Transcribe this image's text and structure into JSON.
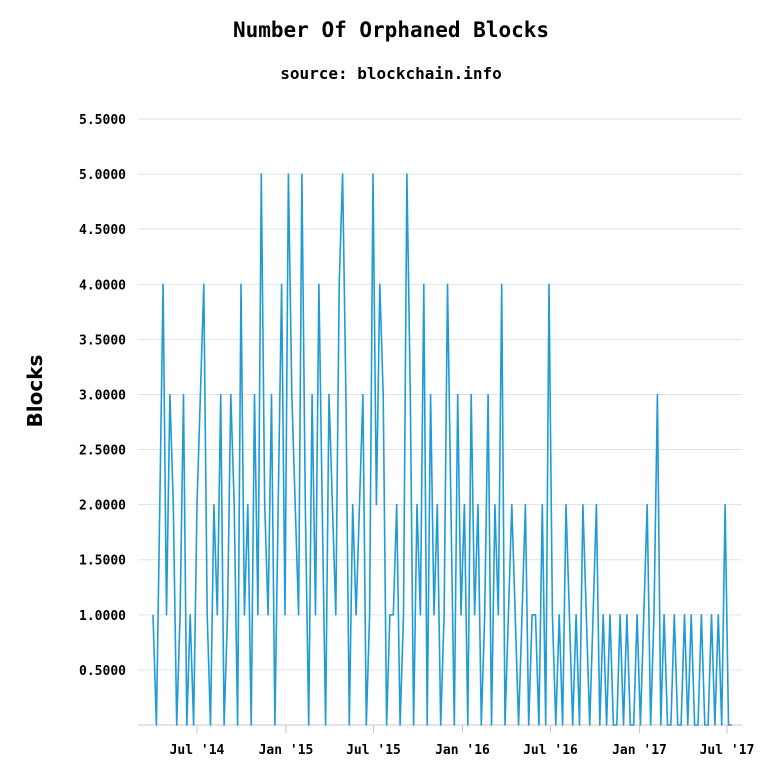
{
  "chart_data": {
    "type": "line",
    "title": "Number Of Orphaned Blocks",
    "subtitle": "source: blockchain.info",
    "ylabel": "Blocks",
    "xlabel": "",
    "ylim": [
      0,
      5.5
    ],
    "yticks": [
      "0.5000",
      "1.0000",
      "1.5000",
      "2.0000",
      "2.5000",
      "3.0000",
      "3.5000",
      "4.0000",
      "4.5000",
      "5.0000",
      "5.5000"
    ],
    "xlim": [
      "2014-03-01",
      "2017-08-01"
    ],
    "xticks": [
      {
        "label": "Jul '14",
        "date": "2014-07-01"
      },
      {
        "label": "Jan '15",
        "date": "2015-01-01"
      },
      {
        "label": "Jul '15",
        "date": "2015-07-01"
      },
      {
        "label": "Jan '16",
        "date": "2016-01-01"
      },
      {
        "label": "Jul '16",
        "date": "2016-07-01"
      },
      {
        "label": "Jan '17",
        "date": "2017-01-01"
      },
      {
        "label": "Jul '17",
        "date": "2017-07-01"
      }
    ],
    "grid": true,
    "legend": "none",
    "series_color": "#1f9bd6",
    "series": [
      {
        "x": [
          "2014-04-01",
          "2014-04-08",
          "2014-04-15",
          "2014-04-22",
          "2014-04-29",
          "2014-05-06",
          "2014-05-13",
          "2014-05-20",
          "2014-05-27",
          "2014-06-03",
          "2014-06-10",
          "2014-06-17",
          "2014-06-24",
          "2014-07-01",
          "2014-07-08",
          "2014-07-15",
          "2014-07-22",
          "2014-07-29",
          "2014-08-05",
          "2014-08-12",
          "2014-08-19",
          "2014-08-26",
          "2014-09-02",
          "2014-09-09",
          "2014-09-16",
          "2014-09-23",
          "2014-09-30",
          "2014-10-07",
          "2014-10-14",
          "2014-10-21",
          "2014-10-28",
          "2014-11-04",
          "2014-11-11",
          "2014-11-18",
          "2014-11-25",
          "2014-12-02",
          "2014-12-09",
          "2014-12-16",
          "2014-12-23",
          "2014-12-30",
          "2015-01-06",
          "2015-01-13",
          "2015-01-20",
          "2015-01-27",
          "2015-02-03",
          "2015-02-10",
          "2015-02-17",
          "2015-02-24",
          "2015-03-03",
          "2015-03-10",
          "2015-03-17",
          "2015-03-24",
          "2015-03-31",
          "2015-04-07",
          "2015-04-14",
          "2015-04-21",
          "2015-04-28",
          "2015-05-05",
          "2015-05-12",
          "2015-05-19",
          "2015-05-26",
          "2015-06-02",
          "2015-06-09",
          "2015-06-16",
          "2015-06-23",
          "2015-06-30",
          "2015-07-07",
          "2015-07-14",
          "2015-07-21",
          "2015-07-28",
          "2015-08-04",
          "2015-08-11",
          "2015-08-18",
          "2015-08-25",
          "2015-09-01",
          "2015-09-08",
          "2015-09-15",
          "2015-09-22",
          "2015-09-29",
          "2015-10-06",
          "2015-10-13",
          "2015-10-20",
          "2015-10-27",
          "2015-11-03",
          "2015-11-10",
          "2015-11-17",
          "2015-11-24",
          "2015-12-01",
          "2015-12-08",
          "2015-12-15",
          "2015-12-22",
          "2015-12-29",
          "2016-01-05",
          "2016-01-12",
          "2016-01-19",
          "2016-01-26",
          "2016-02-02",
          "2016-02-09",
          "2016-02-16",
          "2016-02-23",
          "2016-03-01",
          "2016-03-08",
          "2016-03-15",
          "2016-03-22",
          "2016-03-29",
          "2016-04-05",
          "2016-04-12",
          "2016-04-19",
          "2016-04-26",
          "2016-05-03",
          "2016-05-10",
          "2016-05-17",
          "2016-05-24",
          "2016-05-31",
          "2016-06-07",
          "2016-06-14",
          "2016-06-21",
          "2016-06-28",
          "2016-07-05",
          "2016-07-12",
          "2016-07-19",
          "2016-07-26",
          "2016-08-02",
          "2016-08-09",
          "2016-08-16",
          "2016-08-23",
          "2016-08-30",
          "2016-09-06",
          "2016-09-13",
          "2016-09-20",
          "2016-09-27",
          "2016-10-04",
          "2016-10-11",
          "2016-10-18",
          "2016-10-25",
          "2016-11-01",
          "2016-11-08",
          "2016-11-15",
          "2016-11-22",
          "2016-11-29",
          "2016-12-06",
          "2016-12-13",
          "2016-12-20",
          "2016-12-27",
          "2017-01-03",
          "2017-01-10",
          "2017-01-17",
          "2017-01-24",
          "2017-01-31",
          "2017-02-07",
          "2017-02-14",
          "2017-02-21",
          "2017-02-28",
          "2017-03-07",
          "2017-03-14",
          "2017-03-21",
          "2017-03-28",
          "2017-04-04",
          "2017-04-11",
          "2017-04-18",
          "2017-04-25",
          "2017-05-02",
          "2017-05-09",
          "2017-05-16",
          "2017-05-23",
          "2017-05-30",
          "2017-06-06",
          "2017-06-13",
          "2017-06-20",
          "2017-06-27",
          "2017-07-04",
          "2017-07-11"
        ],
        "values": [
          1,
          0,
          2,
          4,
          1,
          3,
          2,
          0,
          1,
          3,
          0,
          1,
          0,
          2,
          3,
          4,
          1,
          0,
          2,
          1,
          3,
          0,
          1,
          3,
          2,
          0,
          4,
          1,
          2,
          0,
          3,
          1,
          5,
          2,
          1,
          3,
          0,
          2,
          4,
          1,
          5,
          3,
          2,
          1,
          5,
          2,
          0,
          3,
          1,
          4,
          2,
          0,
          3,
          2,
          1,
          4,
          5,
          3,
          0,
          2,
          1,
          2,
          3,
          0,
          1,
          5,
          2,
          4,
          3,
          0,
          1,
          1,
          2,
          0,
          1,
          5,
          3,
          0,
          2,
          1,
          4,
          0,
          3,
          1,
          2,
          0,
          1,
          4,
          2,
          0,
          3,
          1,
          2,
          0,
          3,
          1,
          2,
          0,
          1,
          3,
          0,
          2,
          1,
          4,
          0,
          1,
          2,
          1,
          0,
          1,
          2,
          0,
          1,
          1,
          0,
          2,
          0,
          4,
          1,
          0,
          1,
          0,
          2,
          1,
          0,
          1,
          0,
          2,
          1,
          0,
          1,
          2,
          0,
          1,
          0,
          1,
          0,
          0,
          1,
          0,
          1,
          0,
          0,
          1,
          0,
          1,
          2,
          0,
          1,
          3,
          0,
          1,
          0,
          0,
          1,
          0,
          0,
          1,
          0,
          1,
          0,
          0,
          1,
          0,
          0,
          1,
          0,
          1,
          0,
          2,
          0,
          0
        ]
      }
    ]
  }
}
